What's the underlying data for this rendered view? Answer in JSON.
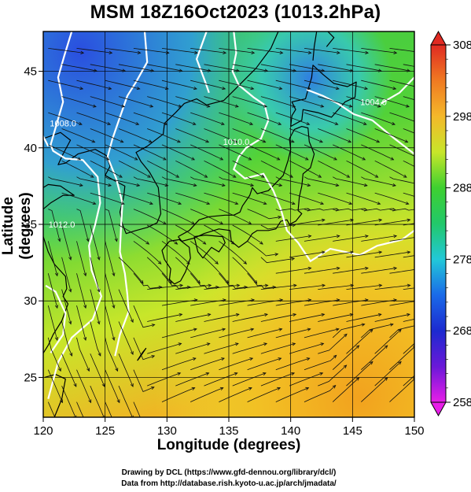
{
  "title": "MSM 18Z16Oct2023 (1013.2hPa)",
  "x_axis": {
    "label": "Longitude (degrees)",
    "min": 120,
    "max": 150,
    "ticks": [
      120,
      125,
      130,
      135,
      140,
      145,
      150
    ]
  },
  "y_axis": {
    "label": "Latitude  (degrees)",
    "min": 22.4,
    "max": 47.6,
    "ticks": [
      25,
      30,
      35,
      40,
      45
    ]
  },
  "colorbar": {
    "min": 258,
    "max": 308,
    "ticks": [
      308,
      298,
      288,
      278,
      268,
      258
    ]
  },
  "isobars": [
    {
      "label": "1012.0",
      "lon": 121.5,
      "lat": 34.8
    },
    {
      "label": "1010.0",
      "lon": 135.6,
      "lat": 40.2
    },
    {
      "label": "1004.0",
      "lon": 146.7,
      "lat": 42.8
    },
    {
      "label": "1008.0",
      "lon": 121.6,
      "lat": 41.4
    }
  ],
  "credits": {
    "line1": "Drawing by DCL (https://www.gfd-dennou.org/library/dcl/)",
    "line2": "Data from http://database.rish.kyoto-u.ac.jp/arch/jmadata/"
  },
  "colors": {
    "cold": "#1a3fd8",
    "cool": "#33d0c0",
    "mild": "#33c433",
    "warm": "#e6e632",
    "hot": "#f0a21e",
    "land_outline": "#000000"
  }
}
